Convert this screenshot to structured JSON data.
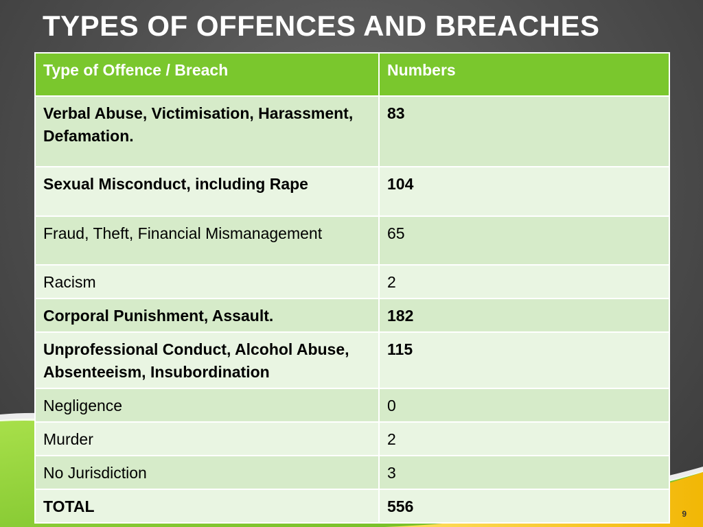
{
  "slide": {
    "title": "TYPES OF OFFENCES AND BREACHES",
    "page_number": "9"
  },
  "table": {
    "headers": [
      "Type of Offence / Breach",
      "Numbers"
    ],
    "rows": [
      {
        "type": "Verbal Abuse, Victimisation, Harassment, Defamation.",
        "number": "83",
        "bold": true
      },
      {
        "type": "Sexual Misconduct, including Rape",
        "number": "104",
        "bold": true
      },
      {
        "type": "Fraud, Theft, Financial Mismanagement",
        "number": "65",
        "bold": false
      },
      {
        "type": "Racism",
        "number": "2",
        "bold": false
      },
      {
        "type": "Corporal Punishment, Assault.",
        "number": "182",
        "bold": true
      },
      {
        "type": "Unprofessional Conduct, Alcohol Abuse, Absenteeism, Insubordination",
        "number": "115",
        "bold": true
      },
      {
        "type": "Negligence",
        "number": "0",
        "bold": false
      },
      {
        "type": "Murder",
        "number": "2",
        "bold": false
      },
      {
        "type": "No Jurisdiction",
        "number": "3",
        "bold": false
      },
      {
        "type": "TOTAL",
        "number": "556",
        "bold": true
      }
    ]
  },
  "colors": {
    "header_green": "#7ac72d",
    "row_dark": "#d6ebc9",
    "row_light": "#e9f5e2",
    "accent_lime": "#8ccf2a",
    "accent_yellow": "#f6c21b"
  }
}
